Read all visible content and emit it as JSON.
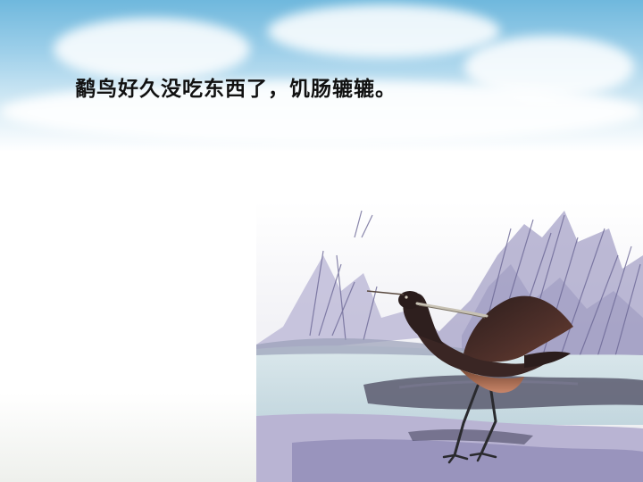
{
  "slide": {
    "caption": "鹬鸟好久没吃东西了，饥肠辘辘。"
  },
  "colors": {
    "sky": "#8cc6e6",
    "caption_text": "#111111",
    "water": "#c9dde3",
    "reeds": "#8a86b4",
    "bird_body": "#3a2624",
    "bird_wing": "#4f302a"
  }
}
